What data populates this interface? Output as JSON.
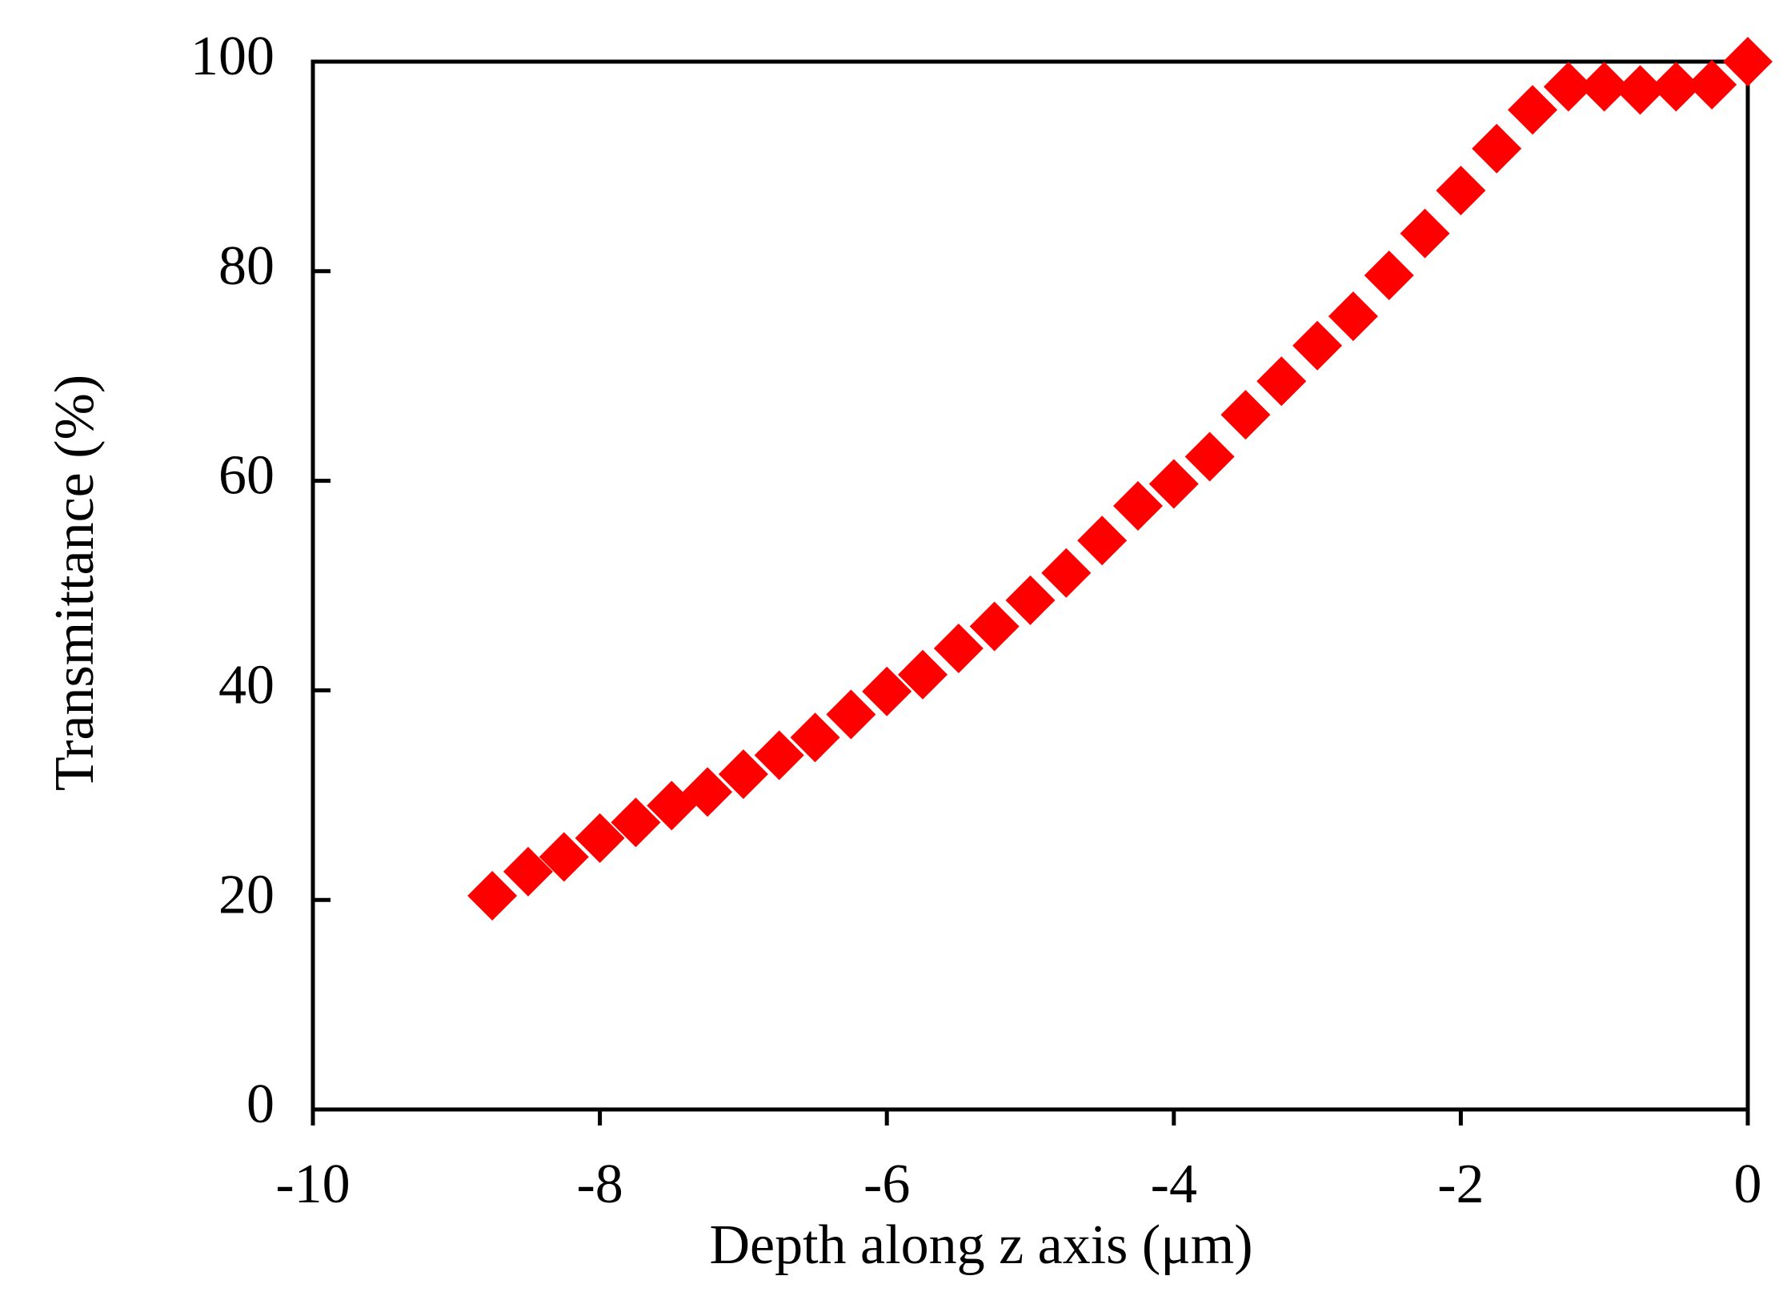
{
  "chart_data": {
    "type": "scatter",
    "xlabel": "Depth along z axis (μm)",
    "ylabel": "Transmittance (%)",
    "x": [
      -8.75,
      -8.5,
      -8.25,
      -8,
      -7.75,
      -7.5,
      -7.25,
      -7,
      -6.75,
      -6.5,
      -6.25,
      -6,
      -5.75,
      -5.5,
      -5.25,
      -5,
      -4.75,
      -4.5,
      -4.25,
      -4,
      -3.75,
      -3.5,
      -3.25,
      -3,
      -2.75,
      -2.5,
      -2.25,
      -2,
      -1.75,
      -1.5,
      -1.25,
      -1,
      -0.75,
      -0.5,
      -0.25,
      0
    ],
    "values": [
      20.4,
      22.7,
      24.1,
      25.9,
      27.4,
      29.0,
      30.3,
      32.0,
      33.8,
      35.5,
      37.7,
      39.9,
      41.5,
      44.0,
      46.1,
      48.6,
      51.2,
      54.3,
      57.6,
      59.7,
      62.3,
      66.3,
      69.5,
      72.9,
      75.7,
      79.6,
      83.6,
      87.7,
      91.7,
      95.4,
      97.6,
      97.6,
      97.3,
      97.6,
      97.8,
      100
    ],
    "color": "#ff0000",
    "marker": "diamond",
    "xlim": [
      -10,
      0
    ],
    "xticks": [
      -10,
      -8,
      -6,
      -4,
      -2,
      0
    ],
    "ylim": [
      0,
      100
    ],
    "yticks": [
      0,
      20,
      40,
      60,
      80,
      100
    ],
    "grid": false
  }
}
